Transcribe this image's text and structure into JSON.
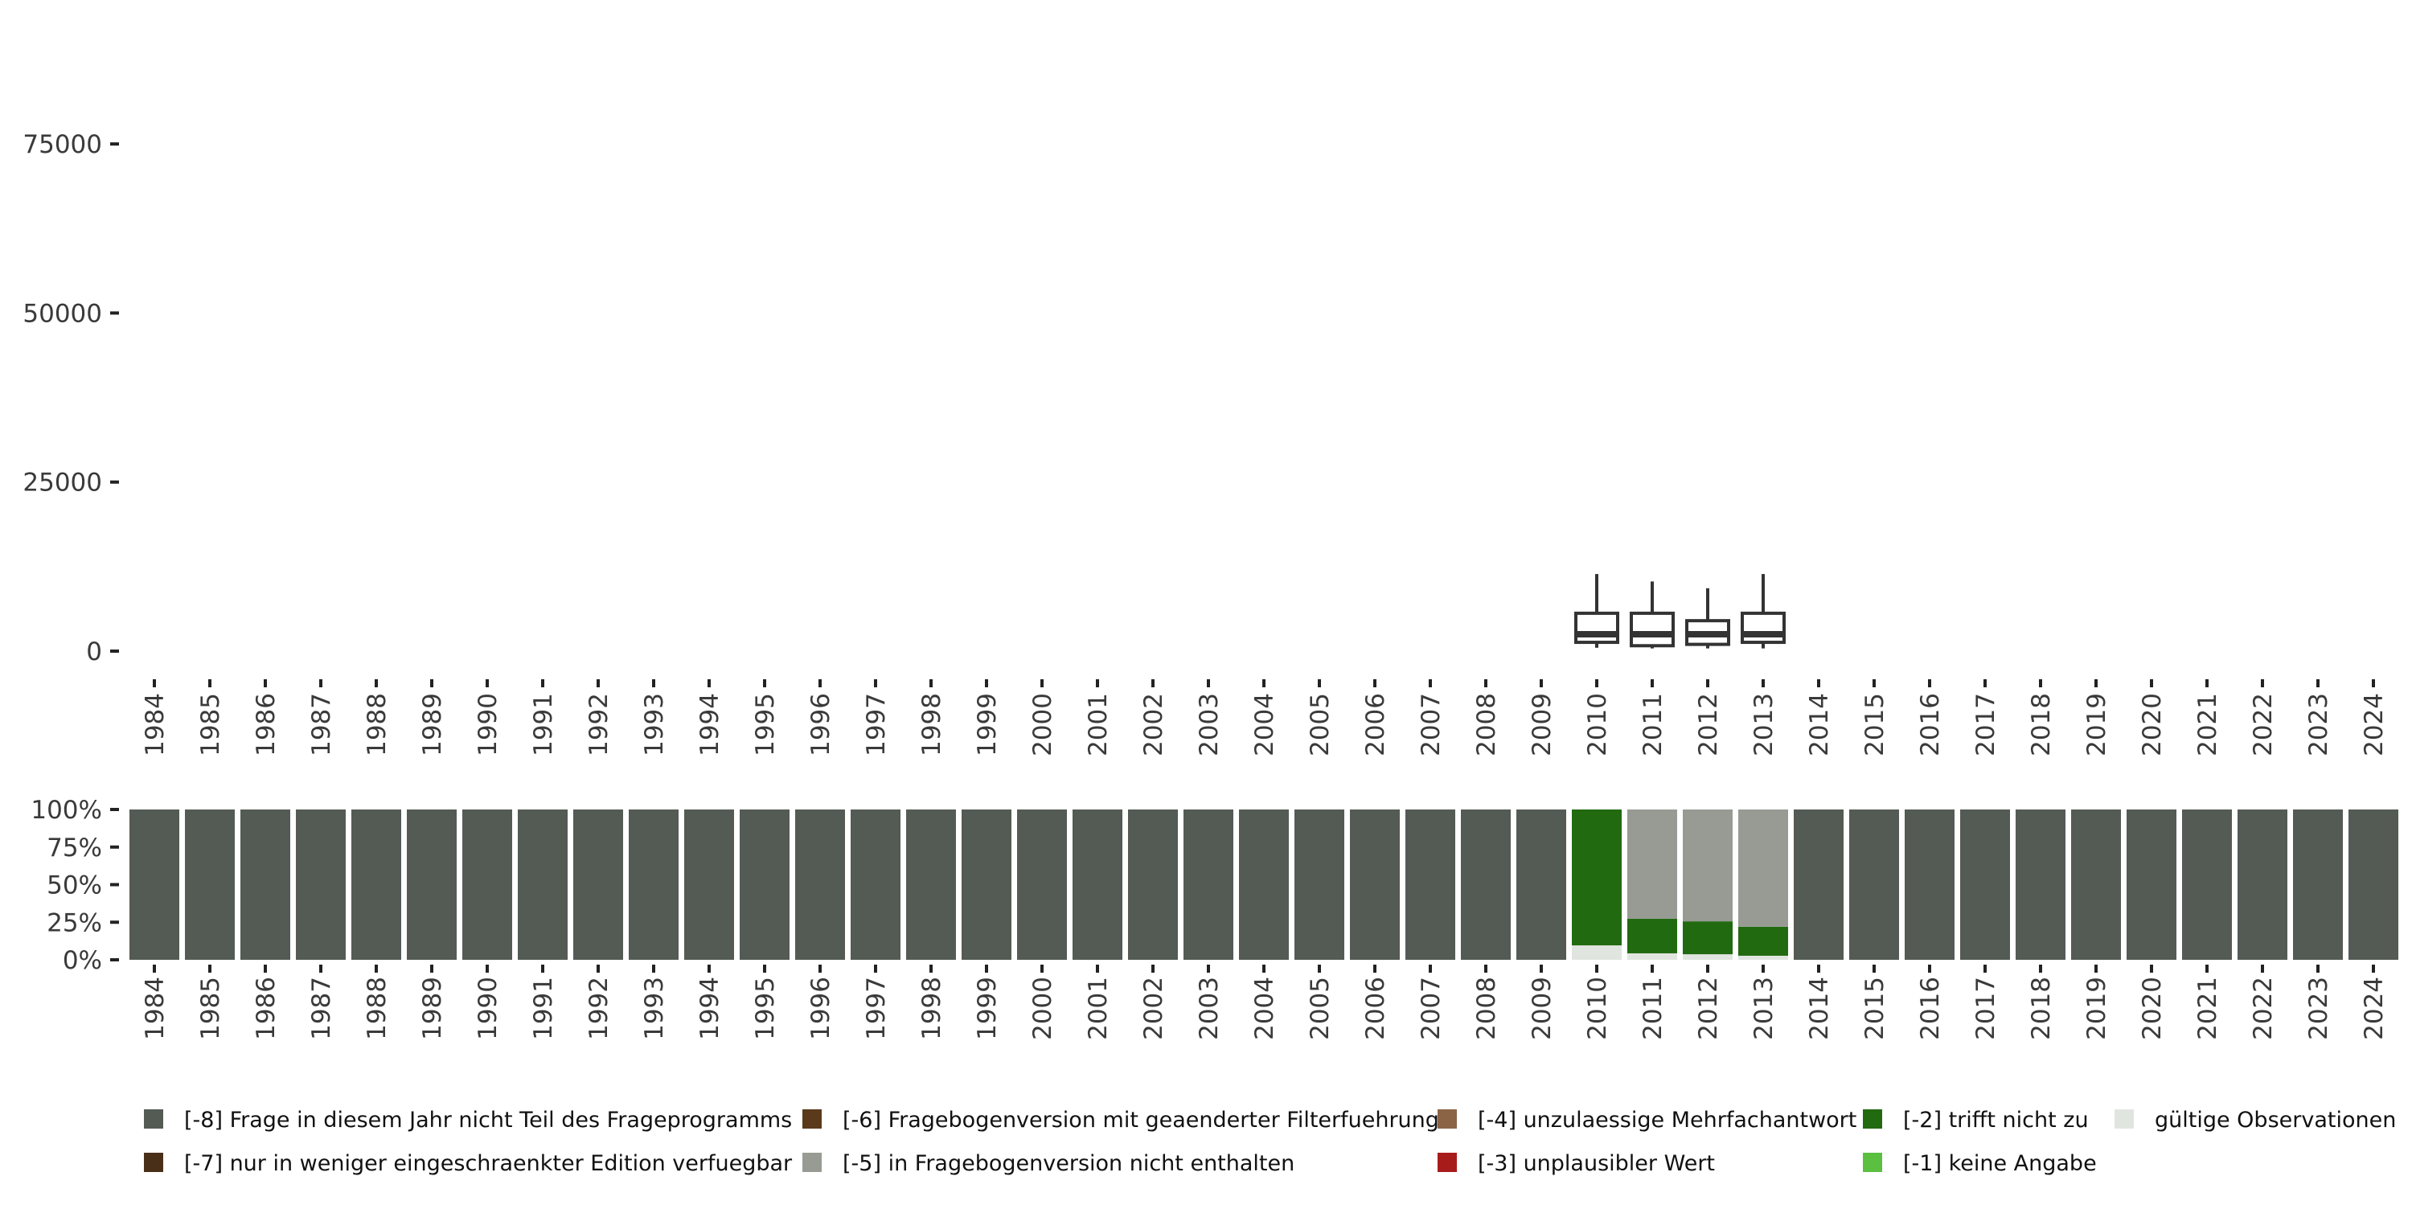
{
  "chart_data": [
    {
      "type": "boxplot",
      "title": "",
      "ylim": [
        0,
        80000
      ],
      "yticks": [
        "0",
        "25000",
        "50000",
        "75000"
      ],
      "ytick_values": [
        0,
        25000,
        50000,
        75000
      ],
      "categories": [
        "1984",
        "1985",
        "1986",
        "1987",
        "1988",
        "1989",
        "1990",
        "1991",
        "1992",
        "1993",
        "1994",
        "1995",
        "1996",
        "1997",
        "1998",
        "1999",
        "2000",
        "2001",
        "2002",
        "2003",
        "2004",
        "2005",
        "2006",
        "2007",
        "2008",
        "2009",
        "2010",
        "2011",
        "2012",
        "2013",
        "2014",
        "2015",
        "2016",
        "2017",
        "2018",
        "2019",
        "2020",
        "2021",
        "2022",
        "2023",
        "2024"
      ],
      "boxes": [
        {
          "year": "2010",
          "min": 500,
          "q1": 1300,
          "median": 2500,
          "q3": 5600,
          "max": 11400
        },
        {
          "year": "2011",
          "min": 400,
          "q1": 800,
          "median": 2500,
          "q3": 5600,
          "max": 10300
        },
        {
          "year": "2012",
          "min": 400,
          "q1": 1000,
          "median": 2500,
          "q3": 4500,
          "max": 9300
        },
        {
          "year": "2013",
          "min": 400,
          "q1": 1300,
          "median": 2500,
          "q3": 5600,
          "max": 11400
        }
      ]
    },
    {
      "type": "bar",
      "stacked": true,
      "yticks": [
        "0%",
        "25%",
        "50%",
        "75%",
        "100%"
      ],
      "ytick_values": [
        0,
        25,
        50,
        75,
        100
      ],
      "categories": [
        "1984",
        "1985",
        "1986",
        "1987",
        "1988",
        "1989",
        "1990",
        "1991",
        "1992",
        "1993",
        "1994",
        "1995",
        "1996",
        "1997",
        "1998",
        "1999",
        "2000",
        "2001",
        "2002",
        "2003",
        "2004",
        "2005",
        "2006",
        "2007",
        "2008",
        "2009",
        "2010",
        "2011",
        "2012",
        "2013",
        "2014",
        "2015",
        "2016",
        "2017",
        "2018",
        "2019",
        "2020",
        "2021",
        "2022",
        "2023",
        "2024"
      ],
      "stack_order": [
        "valid",
        "m2",
        "m5",
        "m8"
      ],
      "special": {
        "2010": {
          "valid": 9.6,
          "m2": 90.4,
          "m5": 0,
          "m8": 0
        },
        "2011": {
          "valid": 4.3,
          "m2": 23.0,
          "m5": 72.7,
          "m8": 0
        },
        "2012": {
          "valid": 3.7,
          "m2": 21.9,
          "m5": 74.4,
          "m8": 0
        },
        "2013": {
          "valid": 2.7,
          "m2": 19.3,
          "m5": 78.0,
          "m8": 0
        }
      },
      "default": {
        "valid": 0,
        "m2": 0,
        "m5": 0,
        "m8": 100
      }
    }
  ],
  "legend": [
    {
      "key": "m8",
      "label": "[-8] Frage in diesem Jahr nicht Teil des Frageprogramms",
      "color": "#545b54"
    },
    {
      "key": "m7",
      "label": "[-7] nur in weniger eingeschraenkter Edition verfuegbar",
      "color": "#4a2f18"
    },
    {
      "key": "m6",
      "label": "[-6] Fragebogenversion mit geaenderter Filterfuehrung",
      "color": "#5a3a1a"
    },
    {
      "key": "m5",
      "label": "[-5] in Fragebogenversion nicht enthalten",
      "color": "#979b94"
    },
    {
      "key": "m4",
      "label": "[-4] unzulaessige Mehrfachantwort",
      "color": "#8b6445"
    },
    {
      "key": "m3",
      "label": "[-3] unplausibler Wert",
      "color": "#a81b1b"
    },
    {
      "key": "m2",
      "label": "[-2] trifft nicht zu",
      "color": "#216a10"
    },
    {
      "key": "m1",
      "label": "[-1] keine Angabe",
      "color": "#5bbf40"
    },
    {
      "key": "valid",
      "label": "gültige Observationen",
      "color": "#e1e5e0"
    }
  ]
}
